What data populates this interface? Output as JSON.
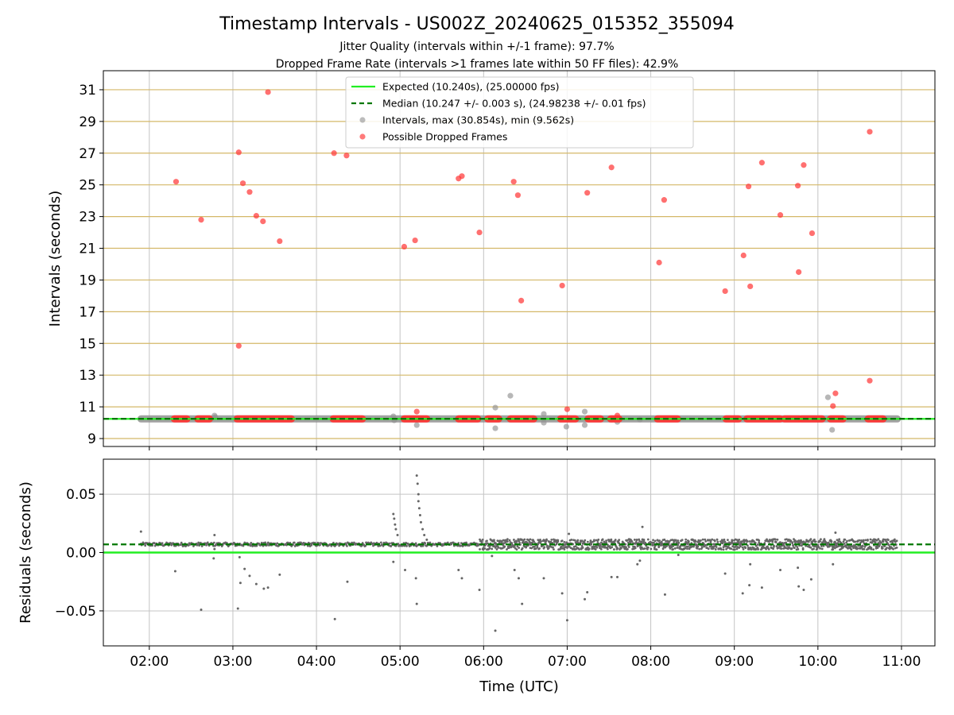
{
  "colors": {
    "expected": "#22ee22",
    "median": "#007700",
    "intervals": "#909090",
    "dropped": "#ff3333",
    "hgrid": "#d4b868",
    "vgrid": "#c4c4c4",
    "residual": "#666666"
  },
  "chart_data": [
    {
      "type": "scatter",
      "title": "Timestamp Intervals - US002Z_20240625_015352_355094",
      "subtitle_1": "Jitter Quality (intervals within +/-1 frame): 97.7%",
      "subtitle_2": "Dropped Frame Rate (intervals >1 frames late within 50 FF files): 42.9%",
      "xlabel": "",
      "ylabel": "Intervals (seconds)",
      "xlim": [
        1.45,
        11.4
      ],
      "ylim": [
        8.5,
        32.2
      ],
      "x_tick_values": [
        2,
        3,
        4,
        5,
        6,
        7,
        8,
        9,
        10,
        11
      ],
      "y_ticks": [
        9,
        11,
        13,
        15,
        17,
        19,
        21,
        23,
        25,
        27,
        29,
        31
      ],
      "grid": true,
      "legend_position": "top-center",
      "legend": [
        "Expected (10.240s), (25.00000 fps)",
        "Median (10.247 +/- 0.003 s), (24.98238 +/- 0.01 fps)",
        "Intervals, max (30.854s), min (9.562s)",
        "Possible Dropped Frames"
      ],
      "expected_line": 10.24,
      "median_line": 10.247,
      "intervals_band": {
        "x_start": 1.9,
        "x_end": 10.95,
        "y": 10.24
      },
      "intervals_outliers": [
        {
          "x": 2.78,
          "y": 10.45
        },
        {
          "x": 2.79,
          "y": 10.35
        },
        {
          "x": 4.92,
          "y": 10.4
        },
        {
          "x": 4.93,
          "y": 10.15
        },
        {
          "x": 5.2,
          "y": 9.85
        },
        {
          "x": 6.14,
          "y": 10.95
        },
        {
          "x": 6.14,
          "y": 9.65
        },
        {
          "x": 6.32,
          "y": 11.7
        },
        {
          "x": 6.72,
          "y": 10.55
        },
        {
          "x": 6.72,
          "y": 10.0
        },
        {
          "x": 6.99,
          "y": 9.75
        },
        {
          "x": 7.21,
          "y": 10.7
        },
        {
          "x": 7.21,
          "y": 9.85
        },
        {
          "x": 7.6,
          "y": 10.05
        },
        {
          "x": 7.87,
          "y": 10.2
        },
        {
          "x": 10.12,
          "y": 11.6
        },
        {
          "x": 10.17,
          "y": 9.55
        }
      ],
      "dropped_band_segments": [
        [
          2.3,
          2.45
        ],
        [
          2.58,
          2.72
        ],
        [
          3.05,
          3.7
        ],
        [
          4.2,
          4.55
        ],
        [
          5.05,
          5.32
        ],
        [
          5.7,
          5.93
        ],
        [
          6.05,
          6.18
        ],
        [
          6.32,
          6.6
        ],
        [
          6.92,
          7.1
        ],
        [
          7.25,
          7.4
        ],
        [
          7.52,
          7.62
        ],
        [
          8.08,
          8.32
        ],
        [
          8.9,
          9.05
        ],
        [
          9.15,
          9.55
        ],
        [
          9.6,
          9.78
        ],
        [
          9.8,
          10.05
        ],
        [
          10.15,
          10.3
        ],
        [
          10.6,
          10.78
        ]
      ],
      "dropped_points": [
        {
          "x": 2.32,
          "y": 25.2
        },
        {
          "x": 2.62,
          "y": 22.8
        },
        {
          "x": 3.07,
          "y": 27.05
        },
        {
          "x": 3.07,
          "y": 14.85
        },
        {
          "x": 3.12,
          "y": 25.1
        },
        {
          "x": 3.2,
          "y": 24.55
        },
        {
          "x": 3.28,
          "y": 23.05
        },
        {
          "x": 3.36,
          "y": 22.7
        },
        {
          "x": 3.42,
          "y": 30.85
        },
        {
          "x": 3.56,
          "y": 21.45
        },
        {
          "x": 4.21,
          "y": 27.0
        },
        {
          "x": 4.36,
          "y": 26.85
        },
        {
          "x": 5.05,
          "y": 21.1
        },
        {
          "x": 5.18,
          "y": 21.5
        },
        {
          "x": 5.2,
          "y": 10.7
        },
        {
          "x": 5.7,
          "y": 25.4
        },
        {
          "x": 5.74,
          "y": 25.55
        },
        {
          "x": 5.95,
          "y": 22.0
        },
        {
          "x": 6.36,
          "y": 25.2
        },
        {
          "x": 6.41,
          "y": 24.35
        },
        {
          "x": 6.45,
          "y": 17.7
        },
        {
          "x": 6.94,
          "y": 18.65
        },
        {
          "x": 7.0,
          "y": 10.85
        },
        {
          "x": 7.24,
          "y": 24.5
        },
        {
          "x": 7.53,
          "y": 26.1
        },
        {
          "x": 7.6,
          "y": 10.45
        },
        {
          "x": 8.1,
          "y": 20.1
        },
        {
          "x": 8.16,
          "y": 24.05
        },
        {
          "x": 8.89,
          "y": 18.3
        },
        {
          "x": 9.11,
          "y": 20.55
        },
        {
          "x": 9.17,
          "y": 24.9
        },
        {
          "x": 9.19,
          "y": 18.6
        },
        {
          "x": 9.33,
          "y": 26.4
        },
        {
          "x": 9.55,
          "y": 23.1
        },
        {
          "x": 9.76,
          "y": 24.95
        },
        {
          "x": 9.77,
          "y": 19.5
        },
        {
          "x": 9.83,
          "y": 26.25
        },
        {
          "x": 9.93,
          "y": 21.95
        },
        {
          "x": 10.18,
          "y": 11.05
        },
        {
          "x": 10.21,
          "y": 11.85
        },
        {
          "x": 10.62,
          "y": 28.35
        },
        {
          "x": 10.62,
          "y": 12.65
        }
      ]
    },
    {
      "type": "scatter",
      "title": "",
      "xlabel": "Time (UTC)",
      "ylabel": "Residuals (seconds)",
      "xlim": [
        1.45,
        11.4
      ],
      "ylim": [
        -0.08,
        0.08
      ],
      "x_ticks": [
        "02:00",
        "03:00",
        "04:00",
        "05:00",
        "06:00",
        "07:00",
        "08:00",
        "09:00",
        "10:00",
        "11:00"
      ],
      "x_tick_values": [
        2,
        3,
        4,
        5,
        6,
        7,
        8,
        9,
        10,
        11
      ],
      "y_ticks": [
        "0.05",
        "0.00",
        "−0.05"
      ],
      "y_tick_values": [
        0.05,
        0.0,
        -0.05
      ],
      "grid": true,
      "expected_line": 0.0,
      "median_line": 0.007,
      "residual_band": {
        "x_start": 1.9,
        "x_end": 10.95,
        "center": 0.007
      },
      "residual_points": [
        {
          "x": 1.9,
          "y": 0.018
        },
        {
          "x": 2.31,
          "y": -0.016
        },
        {
          "x": 2.62,
          "y": -0.049
        },
        {
          "x": 2.78,
          "y": 0.015
        },
        {
          "x": 2.77,
          "y": -0.005
        },
        {
          "x": 2.78,
          "y": 0.003
        },
        {
          "x": 3.06,
          "y": -0.048
        },
        {
          "x": 3.08,
          "y": -0.004
        },
        {
          "x": 3.09,
          "y": -0.026
        },
        {
          "x": 3.14,
          "y": -0.014
        },
        {
          "x": 3.2,
          "y": -0.02
        },
        {
          "x": 3.28,
          "y": -0.027
        },
        {
          "x": 3.37,
          "y": -0.031
        },
        {
          "x": 3.42,
          "y": -0.03
        },
        {
          "x": 3.56,
          "y": -0.019
        },
        {
          "x": 4.22,
          "y": -0.057
        },
        {
          "x": 4.37,
          "y": -0.025
        },
        {
          "x": 4.92,
          "y": -0.008
        },
        {
          "x": 4.92,
          "y": 0.033
        },
        {
          "x": 4.93,
          "y": 0.029
        },
        {
          "x": 4.94,
          "y": 0.024
        },
        {
          "x": 4.95,
          "y": 0.02
        },
        {
          "x": 4.97,
          "y": 0.015
        },
        {
          "x": 5.06,
          "y": -0.015
        },
        {
          "x": 5.19,
          "y": -0.022
        },
        {
          "x": 5.2,
          "y": -0.044
        },
        {
          "x": 5.2,
          "y": 0.066
        },
        {
          "x": 5.21,
          "y": 0.059
        },
        {
          "x": 5.22,
          "y": 0.05
        },
        {
          "x": 5.22,
          "y": 0.044
        },
        {
          "x": 5.23,
          "y": 0.038
        },
        {
          "x": 5.24,
          "y": 0.032
        },
        {
          "x": 5.25,
          "y": 0.026
        },
        {
          "x": 5.27,
          "y": 0.02
        },
        {
          "x": 5.29,
          "y": 0.015
        },
        {
          "x": 5.32,
          "y": 0.011
        },
        {
          "x": 5.7,
          "y": -0.015
        },
        {
          "x": 5.74,
          "y": -0.022
        },
        {
          "x": 5.95,
          "y": -0.032
        },
        {
          "x": 6.1,
          "y": -0.003
        },
        {
          "x": 6.14,
          "y": -0.067
        },
        {
          "x": 6.37,
          "y": -0.015
        },
        {
          "x": 6.42,
          "y": -0.022
        },
        {
          "x": 6.46,
          "y": -0.044
        },
        {
          "x": 6.72,
          "y": -0.022
        },
        {
          "x": 6.94,
          "y": -0.035
        },
        {
          "x": 7.0,
          "y": -0.058
        },
        {
          "x": 7.02,
          "y": 0.016
        },
        {
          "x": 7.21,
          "y": -0.04
        },
        {
          "x": 7.24,
          "y": -0.034
        },
        {
          "x": 7.53,
          "y": -0.021
        },
        {
          "x": 7.6,
          "y": -0.021
        },
        {
          "x": 7.84,
          "y": -0.01
        },
        {
          "x": 7.87,
          "y": -0.007
        },
        {
          "x": 7.9,
          "y": 0.022
        },
        {
          "x": 8.17,
          "y": -0.036
        },
        {
          "x": 8.33,
          "y": -0.002
        },
        {
          "x": 8.89,
          "y": -0.018
        },
        {
          "x": 9.1,
          "y": -0.035
        },
        {
          "x": 9.18,
          "y": -0.028
        },
        {
          "x": 9.19,
          "y": -0.01
        },
        {
          "x": 9.33,
          "y": -0.03
        },
        {
          "x": 9.55,
          "y": -0.015
        },
        {
          "x": 9.76,
          "y": -0.013
        },
        {
          "x": 9.77,
          "y": -0.029
        },
        {
          "x": 9.83,
          "y": -0.032
        },
        {
          "x": 9.92,
          "y": -0.023
        },
        {
          "x": 10.18,
          "y": -0.01
        },
        {
          "x": 10.21,
          "y": 0.017
        }
      ]
    }
  ]
}
